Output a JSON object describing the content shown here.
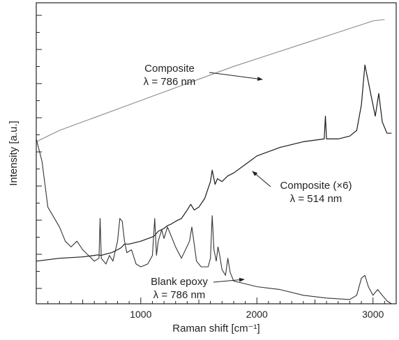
{
  "chart_data": {
    "type": "line",
    "title": "",
    "xlabel": "Raman shift [cm⁻¹]",
    "ylabel": "Intensity [a.u.]",
    "xlim": [
      100,
      3200
    ],
    "ylim": [
      0,
      1
    ],
    "x_ticks": [
      1000,
      2000,
      3000
    ],
    "x_tick_labels": [
      "1000",
      "2000",
      "3000"
    ],
    "y_tick_labels_shown": false,
    "grid": false,
    "legend": "none",
    "series_colors": {
      "composite_786": "#8a8a8a",
      "composite_514": "#1a1a1a",
      "blank_epoxy": "#333333"
    },
    "annotations": [
      {
        "id": "ann-composite-786",
        "series": "Composite λ = 786 nm",
        "lines": [
          "Composite",
          "λ = 786 nm"
        ]
      },
      {
        "id": "ann-composite-514",
        "series": "Composite (×6) λ = 514 nm",
        "lines": [
          "Composite (×6)",
          "λ = 514 nm"
        ]
      },
      {
        "id": "ann-blank-epoxy",
        "series": "Blank epoxy λ = 786 nm",
        "lines": [
          "Blank epoxy",
          "λ = 786 nm"
        ]
      }
    ],
    "series": [
      {
        "x": [
          100,
          300,
          600,
          900,
          1200,
          1500,
          1800,
          2100,
          2400,
          2700,
          3000,
          3100
        ],
        "y": [
          0.57,
          0.61,
          0.655,
          0.7,
          0.745,
          0.79,
          0.835,
          0.875,
          0.915,
          0.955,
          0.995,
          1.0
        ]
      },
      {
        "x": [
          100,
          300,
          500,
          600,
          630,
          660,
          700,
          750,
          800,
          830,
          860,
          900,
          1000,
          1100,
          1120,
          1150,
          1200,
          1230,
          1260,
          1300,
          1350,
          1400,
          1430,
          1460,
          1500,
          1550,
          1600,
          1615,
          1640,
          1660,
          1700,
          1750,
          1800,
          1900,
          2000,
          2200,
          2400,
          2580,
          2590,
          2600,
          2700,
          2800,
          2860,
          2900,
          2930,
          2960,
          2990,
          3020,
          3050,
          3080,
          3120,
          3160
        ],
        "y": [
          0.15,
          0.16,
          0.165,
          0.17,
          0.172,
          0.17,
          0.175,
          0.18,
          0.19,
          0.197,
          0.21,
          0.21,
          0.22,
          0.235,
          0.24,
          0.255,
          0.265,
          0.275,
          0.28,
          0.29,
          0.3,
          0.33,
          0.35,
          0.33,
          0.34,
          0.37,
          0.43,
          0.47,
          0.42,
          0.44,
          0.43,
          0.45,
          0.46,
          0.49,
          0.52,
          0.55,
          0.57,
          0.58,
          0.66,
          0.58,
          0.58,
          0.59,
          0.61,
          0.7,
          0.84,
          0.78,
          0.72,
          0.66,
          0.74,
          0.64,
          0.6,
          0.6
        ]
      },
      {
        "x": [
          100,
          150,
          200,
          300,
          350,
          400,
          450,
          500,
          600,
          640,
          650,
          660,
          700,
          730,
          760,
          800,
          820,
          840,
          860,
          880,
          920,
          960,
          1000,
          1060,
          1100,
          1120,
          1135,
          1150,
          1180,
          1200,
          1230,
          1250,
          1280,
          1300,
          1350,
          1420,
          1440,
          1460,
          1480,
          1520,
          1580,
          1600,
          1615,
          1630,
          1650,
          1665,
          1680,
          1700,
          1730,
          1750,
          1770,
          1800,
          1900,
          2000,
          2200,
          2400,
          2600,
          2800,
          2860,
          2900,
          2930,
          2960,
          3000,
          3040,
          3080,
          3120,
          3160
        ],
        "y": [
          0.58,
          0.5,
          0.34,
          0.27,
          0.22,
          0.2,
          0.22,
          0.19,
          0.15,
          0.16,
          0.3,
          0.16,
          0.14,
          0.17,
          0.15,
          0.22,
          0.3,
          0.29,
          0.22,
          0.18,
          0.19,
          0.14,
          0.13,
          0.14,
          0.17,
          0.3,
          0.17,
          0.22,
          0.26,
          0.23,
          0.27,
          0.25,
          0.22,
          0.2,
          0.16,
          0.22,
          0.27,
          0.21,
          0.15,
          0.13,
          0.13,
          0.16,
          0.31,
          0.19,
          0.15,
          0.2,
          0.17,
          0.12,
          0.1,
          0.16,
          0.11,
          0.08,
          0.07,
          0.06,
          0.05,
          0.03,
          0.02,
          0.015,
          0.03,
          0.09,
          0.1,
          0.06,
          0.03,
          0.05,
          0.03,
          0.01,
          0.0
        ]
      }
    ]
  }
}
